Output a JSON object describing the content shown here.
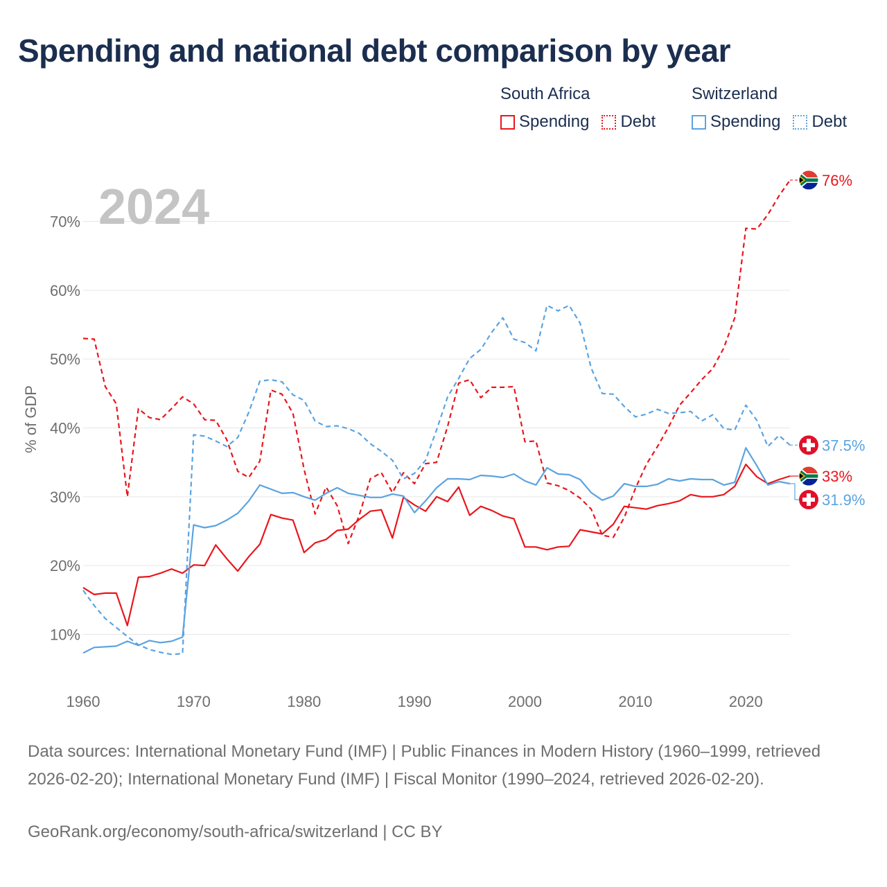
{
  "title": "Spending and national debt comparison by year",
  "legend": {
    "groups": [
      {
        "country": "South Africa",
        "items": [
          {
            "label": "Spending",
            "style": "solid",
            "color": "#e8161c"
          },
          {
            "label": "Debt",
            "style": "dotted",
            "color": "#e8161c"
          }
        ]
      },
      {
        "country": "Switzerland",
        "items": [
          {
            "label": "Spending",
            "style": "solid",
            "color": "#5ba3e0"
          },
          {
            "label": "Debt",
            "style": "dotted",
            "color": "#5ba3e0"
          }
        ]
      }
    ]
  },
  "chart_data": {
    "type": "line",
    "title": "Spending and national debt comparison by year",
    "year_watermark": "2024",
    "xlabel": "",
    "ylabel": "% of GDP",
    "xlim": [
      1960,
      2024
    ],
    "ylim": [
      3,
      77
    ],
    "x_ticks": [
      1960,
      1970,
      1980,
      1990,
      2000,
      2010,
      2020
    ],
    "y_ticks": [
      10,
      20,
      30,
      40,
      50,
      60,
      70
    ],
    "y_tick_labels": [
      "10%",
      "20%",
      "30%",
      "40%",
      "50%",
      "60%",
      "70%"
    ],
    "series": [
      {
        "name": "South Africa Debt",
        "country": "South Africa",
        "metric": "Debt",
        "color": "#e8161c",
        "dash": "dashed",
        "end_label": "76%",
        "end_flag": "south-africa",
        "points": [
          [
            1960,
            53.0
          ],
          [
            1961,
            52.9
          ],
          [
            1962,
            46
          ],
          [
            1963,
            43.5
          ],
          [
            1964,
            30
          ],
          [
            1965,
            42.8
          ],
          [
            1966,
            41.5
          ],
          [
            1967,
            41.2
          ],
          [
            1968,
            42.8
          ],
          [
            1969,
            44.5
          ],
          [
            1970,
            43.5
          ],
          [
            1971,
            41.2
          ],
          [
            1972,
            41.1
          ],
          [
            1973,
            38.3
          ],
          [
            1974,
            33.7
          ],
          [
            1975,
            32.8
          ],
          [
            1976,
            35.2
          ],
          [
            1977,
            45.5
          ],
          [
            1978,
            44.9
          ],
          [
            1979,
            42.1
          ],
          [
            1980,
            34.0
          ],
          [
            1981,
            27.5
          ],
          [
            1982,
            31.4
          ],
          [
            1983,
            28.7
          ],
          [
            1984,
            23.2
          ],
          [
            1985,
            27.3
          ],
          [
            1986,
            32.6
          ],
          [
            1987,
            33.5
          ],
          [
            1988,
            30.6
          ],
          [
            1989,
            33.5
          ],
          [
            1990,
            31.9
          ],
          [
            1991,
            34.8
          ],
          [
            1992,
            35.0
          ],
          [
            1993,
            40.2
          ],
          [
            1994,
            46.5
          ],
          [
            1995,
            47.0
          ],
          [
            1996,
            44.4
          ],
          [
            1997,
            45.9
          ],
          [
            1998,
            45.9
          ],
          [
            1999,
            46.0
          ],
          [
            2000,
            38.0
          ],
          [
            2001,
            38.1
          ],
          [
            2002,
            32.0
          ],
          [
            2003,
            31.6
          ],
          [
            2004,
            30.9
          ],
          [
            2005,
            29.8
          ],
          [
            2006,
            28.2
          ],
          [
            2007,
            24.4
          ],
          [
            2008,
            24.1
          ],
          [
            2009,
            27.0
          ],
          [
            2010,
            31.2
          ],
          [
            2011,
            34.7
          ],
          [
            2012,
            37.3
          ],
          [
            2013,
            40.1
          ],
          [
            2014,
            43.3
          ],
          [
            2015,
            45.1
          ],
          [
            2016,
            47.0
          ],
          [
            2017,
            48.6
          ],
          [
            2018,
            51.6
          ],
          [
            2019,
            56.0
          ],
          [
            2020,
            69.0
          ],
          [
            2021,
            68.9
          ],
          [
            2022,
            71.0
          ],
          [
            2023,
            73.7
          ],
          [
            2024,
            76.0
          ]
        ]
      },
      {
        "name": "South Africa Spending",
        "country": "South Africa",
        "metric": "Spending",
        "color": "#e8161c",
        "dash": "solid",
        "end_label": "33%",
        "end_flag": "south-africa",
        "points": [
          [
            1960,
            16.8
          ],
          [
            1961,
            15.8
          ],
          [
            1962,
            16.0
          ],
          [
            1963,
            16.0
          ],
          [
            1964,
            11.3
          ],
          [
            1965,
            18.3
          ],
          [
            1966,
            18.4
          ],
          [
            1967,
            18.9
          ],
          [
            1968,
            19.5
          ],
          [
            1969,
            18.9
          ],
          [
            1970,
            20.1
          ],
          [
            1971,
            20.0
          ],
          [
            1972,
            23.0
          ],
          [
            1973,
            21.0
          ],
          [
            1974,
            19.2
          ],
          [
            1975,
            21.3
          ],
          [
            1976,
            23.1
          ],
          [
            1977,
            27.4
          ],
          [
            1978,
            26.9
          ],
          [
            1979,
            26.6
          ],
          [
            1980,
            21.9
          ],
          [
            1981,
            23.3
          ],
          [
            1982,
            23.8
          ],
          [
            1983,
            25.1
          ],
          [
            1984,
            25.3
          ],
          [
            1985,
            26.7
          ],
          [
            1986,
            27.9
          ],
          [
            1987,
            28.1
          ],
          [
            1988,
            24.0
          ],
          [
            1989,
            29.9
          ],
          [
            1990,
            28.8
          ],
          [
            1991,
            27.9
          ],
          [
            1992,
            30.0
          ],
          [
            1993,
            29.3
          ],
          [
            1994,
            31.4
          ],
          [
            1995,
            27.3
          ],
          [
            1996,
            28.6
          ],
          [
            1997,
            28.0
          ],
          [
            1998,
            27.2
          ],
          [
            1999,
            26.8
          ],
          [
            2000,
            22.7
          ],
          [
            2001,
            22.7
          ],
          [
            2002,
            22.3
          ],
          [
            2003,
            22.7
          ],
          [
            2004,
            22.8
          ],
          [
            2005,
            25.2
          ],
          [
            2006,
            24.9
          ],
          [
            2007,
            24.6
          ],
          [
            2008,
            26.0
          ],
          [
            2009,
            28.6
          ],
          [
            2010,
            28.4
          ],
          [
            2011,
            28.2
          ],
          [
            2012,
            28.7
          ],
          [
            2013,
            29.0
          ],
          [
            2014,
            29.4
          ],
          [
            2015,
            30.3
          ],
          [
            2016,
            30.0
          ],
          [
            2017,
            30.0
          ],
          [
            2018,
            30.3
          ],
          [
            2019,
            31.5
          ],
          [
            2020,
            34.7
          ],
          [
            2021,
            32.9
          ],
          [
            2022,
            31.9
          ],
          [
            2023,
            32.5
          ],
          [
            2024,
            33.0
          ]
        ]
      },
      {
        "name": "Switzerland Debt",
        "country": "Switzerland",
        "metric": "Debt",
        "color": "#5ba3e0",
        "dash": "dashed",
        "end_label": "37.5%",
        "end_flag": "switzerland",
        "points": [
          [
            1960,
            16.4
          ],
          [
            1961,
            14.2
          ],
          [
            1962,
            12.3
          ],
          [
            1963,
            11.0
          ],
          [
            1964,
            9.7
          ],
          [
            1965,
            8.5
          ],
          [
            1966,
            7.8
          ],
          [
            1967,
            7.4
          ],
          [
            1968,
            7.1
          ],
          [
            1969,
            7.2
          ],
          [
            1970,
            39.0
          ],
          [
            1971,
            38.8
          ],
          [
            1972,
            38.1
          ],
          [
            1973,
            37.3
          ],
          [
            1974,
            38.6
          ],
          [
            1975,
            42.3
          ],
          [
            1976,
            46.8
          ],
          [
            1977,
            47.0
          ],
          [
            1978,
            46.7
          ],
          [
            1979,
            44.8
          ],
          [
            1980,
            44.0
          ],
          [
            1981,
            41.0
          ],
          [
            1982,
            40.2
          ],
          [
            1983,
            40.3
          ],
          [
            1984,
            39.9
          ],
          [
            1985,
            39.2
          ],
          [
            1986,
            37.7
          ],
          [
            1987,
            36.6
          ],
          [
            1988,
            35.3
          ],
          [
            1989,
            32.6
          ],
          [
            1990,
            33.4
          ],
          [
            1991,
            35.3
          ],
          [
            1992,
            39.7
          ],
          [
            1993,
            44.5
          ],
          [
            1994,
            47.2
          ],
          [
            1995,
            50.1
          ],
          [
            1996,
            51.4
          ],
          [
            1997,
            53.9
          ],
          [
            1998,
            56.0
          ],
          [
            1999,
            52.9
          ],
          [
            2000,
            52.4
          ],
          [
            2001,
            51.2
          ],
          [
            2002,
            57.8
          ],
          [
            2003,
            57.0
          ],
          [
            2004,
            57.8
          ],
          [
            2005,
            55.2
          ],
          [
            2006,
            48.7
          ],
          [
            2007,
            45.0
          ],
          [
            2008,
            44.9
          ],
          [
            2009,
            43.1
          ],
          [
            2010,
            41.6
          ],
          [
            2011,
            42.0
          ],
          [
            2012,
            42.7
          ],
          [
            2013,
            42.1
          ],
          [
            2014,
            42.2
          ],
          [
            2015,
            42.4
          ],
          [
            2016,
            41.0
          ],
          [
            2017,
            41.9
          ],
          [
            2018,
            39.9
          ],
          [
            2019,
            39.7
          ],
          [
            2020,
            43.3
          ],
          [
            2021,
            41.1
          ],
          [
            2022,
            37.3
          ],
          [
            2023,
            38.9
          ],
          [
            2024,
            37.5
          ]
        ]
      },
      {
        "name": "Switzerland Spending",
        "country": "Switzerland",
        "metric": "Spending",
        "color": "#5ba3e0",
        "dash": "solid",
        "end_label": "31.9%",
        "end_flag": "switzerland",
        "points": [
          [
            1960,
            7.3
          ],
          [
            1961,
            8.1
          ],
          [
            1962,
            8.2
          ],
          [
            1963,
            8.3
          ],
          [
            1964,
            9.0
          ],
          [
            1965,
            8.4
          ],
          [
            1966,
            9.1
          ],
          [
            1967,
            8.8
          ],
          [
            1968,
            9.0
          ],
          [
            1969,
            9.6
          ],
          [
            1970,
            25.9
          ],
          [
            1971,
            25.5
          ],
          [
            1972,
            25.8
          ],
          [
            1973,
            26.6
          ],
          [
            1974,
            27.6
          ],
          [
            1975,
            29.4
          ],
          [
            1976,
            31.7
          ],
          [
            1977,
            31.1
          ],
          [
            1978,
            30.5
          ],
          [
            1979,
            30.6
          ],
          [
            1980,
            30.0
          ],
          [
            1981,
            29.5
          ],
          [
            1982,
            30.5
          ],
          [
            1983,
            31.3
          ],
          [
            1984,
            30.5
          ],
          [
            1985,
            30.2
          ],
          [
            1986,
            29.9
          ],
          [
            1987,
            29.9
          ],
          [
            1988,
            30.4
          ],
          [
            1989,
            30.1
          ],
          [
            1990,
            27.7
          ],
          [
            1991,
            29.4
          ],
          [
            1992,
            31.3
          ],
          [
            1993,
            32.6
          ],
          [
            1994,
            32.6
          ],
          [
            1995,
            32.5
          ],
          [
            1996,
            33.1
          ],
          [
            1997,
            33.0
          ],
          [
            1998,
            32.8
          ],
          [
            1999,
            33.3
          ],
          [
            2000,
            32.3
          ],
          [
            2001,
            31.7
          ],
          [
            2002,
            34.2
          ],
          [
            2003,
            33.3
          ],
          [
            2004,
            33.2
          ],
          [
            2005,
            32.5
          ],
          [
            2006,
            30.6
          ],
          [
            2007,
            29.5
          ],
          [
            2008,
            30.1
          ],
          [
            2009,
            31.9
          ],
          [
            2010,
            31.5
          ],
          [
            2011,
            31.5
          ],
          [
            2012,
            31.8
          ],
          [
            2013,
            32.6
          ],
          [
            2014,
            32.3
          ],
          [
            2015,
            32.6
          ],
          [
            2016,
            32.5
          ],
          [
            2017,
            32.5
          ],
          [
            2018,
            31.7
          ],
          [
            2019,
            32.1
          ],
          [
            2020,
            37.1
          ],
          [
            2021,
            34.5
          ],
          [
            2022,
            31.7
          ],
          [
            2023,
            32.2
          ],
          [
            2024,
            31.9
          ]
        ]
      }
    ]
  },
  "footer": {
    "sources": "Data sources: International Monetary Fund (IMF) | Public Finances in Modern History (1960–1999, retrieved 2026-02-20); International Monetary Fund (IMF) | Fiscal Monitor (1990–2024, retrieved 2026-02-20).",
    "credit": "GeoRank.org/economy/south-africa/switzerland | CC BY"
  }
}
